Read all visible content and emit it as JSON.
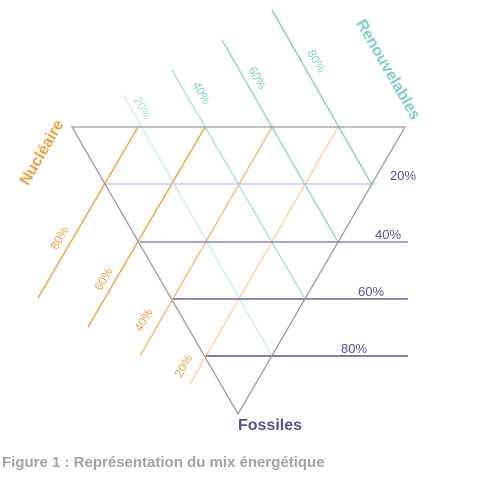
{
  "figure": {
    "caption": "Figure 1 : Représentation du mix énergétique"
  },
  "axes": {
    "nucleaire": {
      "title": "Nucléaire",
      "color": "#f0a23c",
      "ticks": [
        "20%",
        "40%",
        "60%",
        "80%"
      ]
    },
    "renouvelables": {
      "title": "Renouvelables",
      "color": "#7fd0c4",
      "ticks": [
        "20%",
        "40%",
        "60%",
        "80%"
      ]
    },
    "fossiles": {
      "title": "Fossiles",
      "color": "#5a4d96",
      "ticks": [
        "20%",
        "40%",
        "60%",
        "80%"
      ]
    }
  },
  "triangle": {
    "outline_color": "#9b9b9b"
  }
}
